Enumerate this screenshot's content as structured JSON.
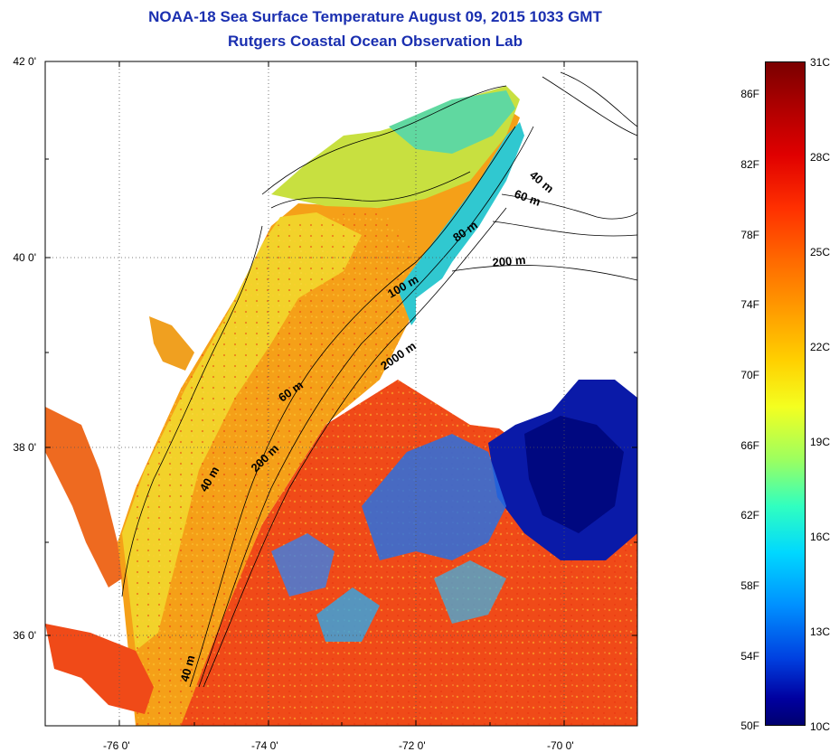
{
  "title_line1": "NOAA-18 Sea Surface Temperature August 09, 2015 1033 GMT",
  "title_line2": "Rutgers Coastal Ocean Observation Lab",
  "axes": {
    "y_labels": [
      "42 0'",
      "40 0'",
      "38 0'",
      "36 0'"
    ],
    "x_labels": [
      "-76 0'",
      "-74 0'",
      "-72 0'",
      "-70 0'"
    ],
    "lat_range": [
      35,
      42
    ],
    "lon_range": [
      -77,
      -69
    ]
  },
  "colorbar": {
    "fahrenheit_labels": [
      "86F",
      "82F",
      "78F",
      "74F",
      "70F",
      "66F",
      "62F",
      "58F",
      "54F",
      "50F"
    ],
    "celsius_labels": [
      "31C",
      "28C",
      "25C",
      "22C",
      "19C",
      "16C",
      "13C",
      "10C"
    ],
    "range_celsius": [
      10,
      31
    ]
  },
  "isobath_labels": [
    "40 m",
    "60 m",
    "80 m",
    "100 m",
    "200 m",
    "2000 m",
    "60 m",
    "200 m",
    "40 m",
    "40 m"
  ],
  "colors": {
    "title": "#1a2fb0",
    "land": "#ffffff",
    "cloud_mask": "#ffffff",
    "warm_water": "#f05020",
    "shelf_water": "#f5c020",
    "cold_water": "#0a1aa8"
  }
}
